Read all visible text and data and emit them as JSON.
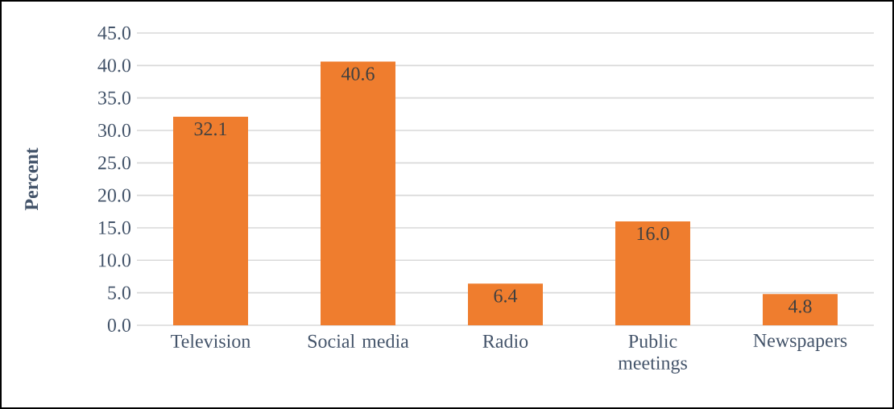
{
  "chart_data": {
    "type": "bar",
    "ylabel": "Percent",
    "categories": [
      "Television",
      "Social media",
      "Radio",
      "Public meetings",
      "Newspapers"
    ],
    "values": [
      32.1,
      40.6,
      6.4,
      16.0,
      4.8
    ],
    "color": "#ef7d2e",
    "ylim": [
      0,
      45
    ],
    "yticks": [
      {
        "value": 0,
        "label": "0.0"
      },
      {
        "value": 5,
        "label": "5.0"
      },
      {
        "value": 10,
        "label": "10.0"
      },
      {
        "value": 15,
        "label": "15.0"
      },
      {
        "value": 20,
        "label": "20.0"
      },
      {
        "value": 25,
        "label": "25.0"
      },
      {
        "value": 30,
        "label": "30.0"
      },
      {
        "value": 35,
        "label": "35.0"
      },
      {
        "value": 40,
        "label": "40.0"
      },
      {
        "value": 45,
        "label": "45.0"
      }
    ],
    "value_labels": [
      "32.1",
      "40.6",
      "6.4",
      "16.0",
      "4.8"
    ],
    "grid": "y"
  }
}
